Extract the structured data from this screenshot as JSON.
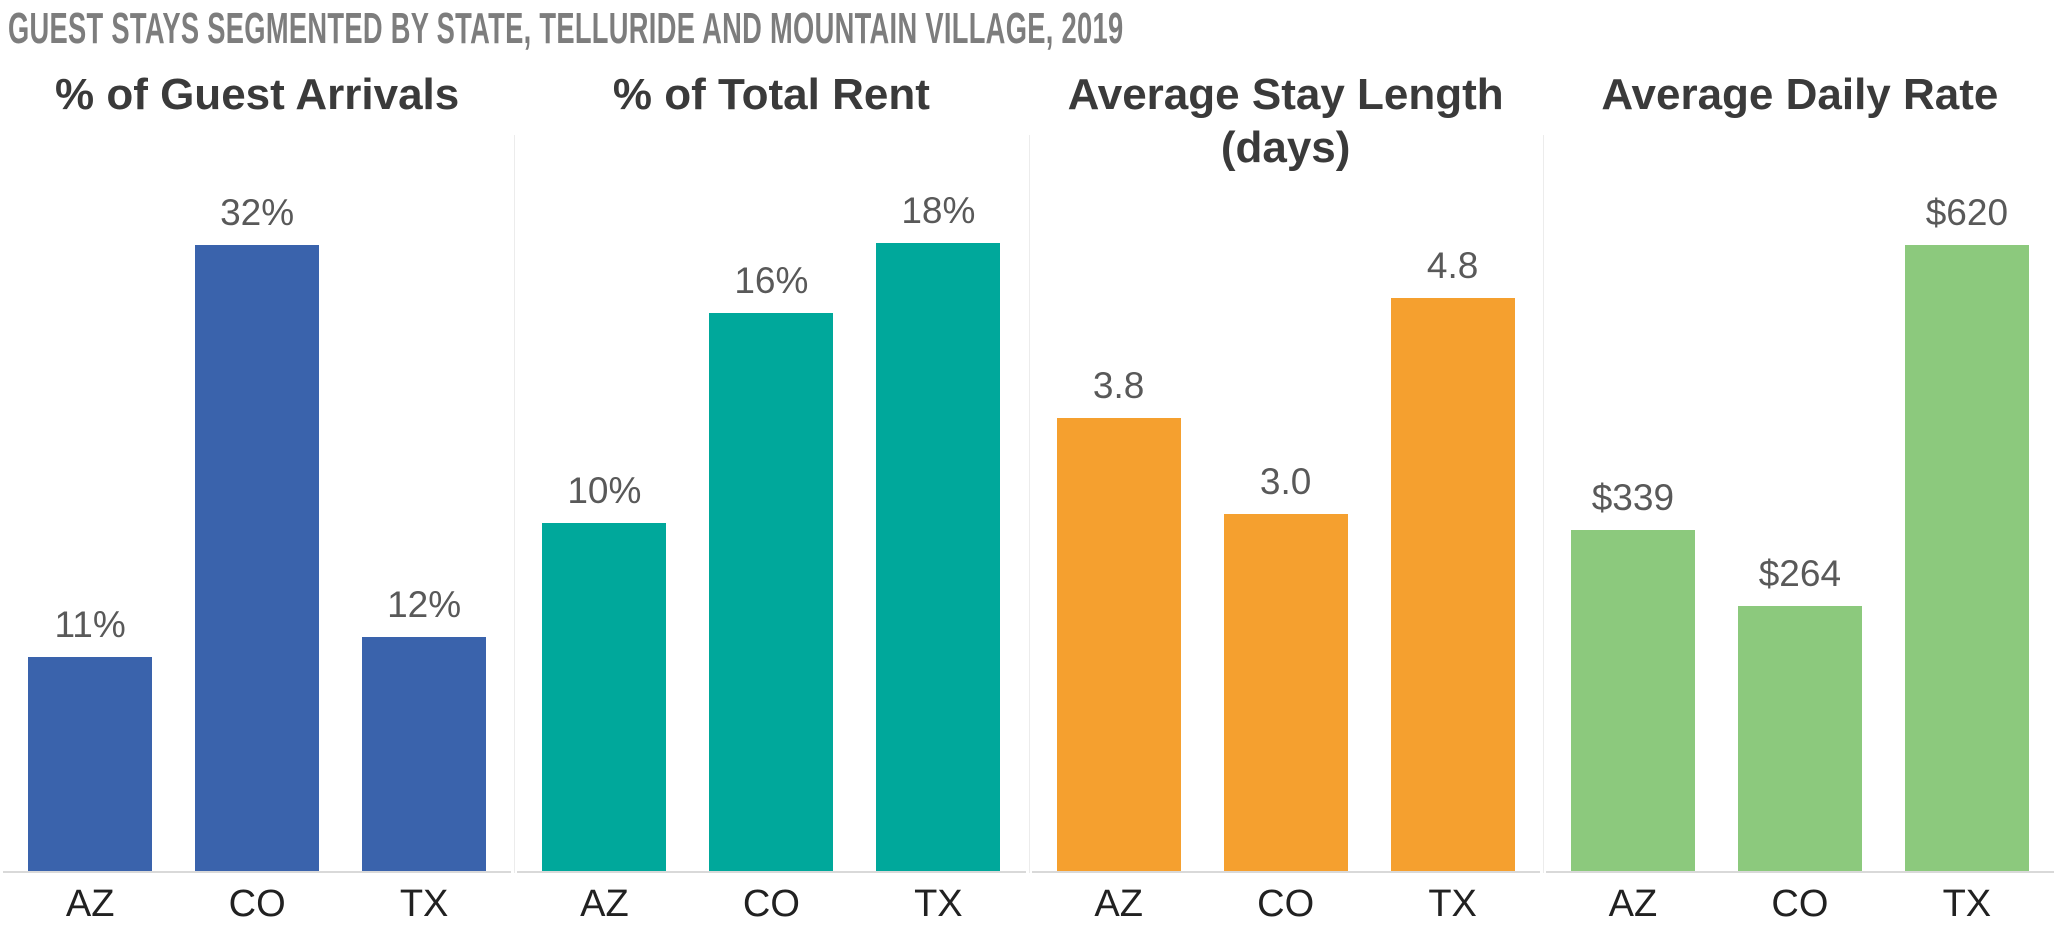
{
  "page": {
    "title": "GUEST STAYS SEGMENTED BY STATE, TELLURIDE AND MOUNTAIN VILLAGE, 2019"
  },
  "colors": {
    "headline_gray": "#7d7d7d",
    "chart_title": "#3a3a3a",
    "value_label": "#595959",
    "axis_label": "#212121",
    "axis_line": "#d9d9d9",
    "panel_divider": "#ececec",
    "blue": "#3a63ac",
    "teal": "#00a89b",
    "orange": "#f5a02f",
    "green": "#8cc97d"
  },
  "chart_data": [
    {
      "type": "bar",
      "title": "% of Guest Arrivals",
      "title_lines": [
        "% of Guest Arrivals"
      ],
      "categories": [
        "AZ",
        "CO",
        "TX"
      ],
      "values": [
        11,
        32,
        12
      ],
      "labels": [
        "11%",
        "32%",
        "12%"
      ],
      "color": "#3a63ac",
      "ylim": [
        0,
        32
      ],
      "grid": false,
      "legend": "none"
    },
    {
      "type": "bar",
      "title": "% of Total Rent",
      "title_lines": [
        "% of Total Rent"
      ],
      "categories": [
        "AZ",
        "CO",
        "TX"
      ],
      "values": [
        10,
        16,
        18
      ],
      "labels": [
        "10%",
        "16%",
        "18%"
      ],
      "color": "#00a89b",
      "ylim": [
        0,
        18
      ],
      "grid": false,
      "legend": "none"
    },
    {
      "type": "bar",
      "title": "Average Stay Length (days)",
      "title_lines": [
        "Average Stay Length",
        "(days)"
      ],
      "categories": [
        "AZ",
        "CO",
        "TX"
      ],
      "values": [
        3.8,
        3.0,
        4.8
      ],
      "labels": [
        "3.8",
        "3.0",
        "4.8"
      ],
      "color": "#f5a02f",
      "ylim": [
        0,
        4.8
      ],
      "grid": false,
      "legend": "none"
    },
    {
      "type": "bar",
      "title": "Average Daily Rate",
      "title_lines": [
        "Average Daily Rate"
      ],
      "categories": [
        "AZ",
        "CO",
        "TX"
      ],
      "values": [
        339,
        264,
        620
      ],
      "labels": [
        "$339",
        "$264",
        "$620"
      ],
      "color": "#8cc97d",
      "ylim": [
        0,
        620
      ],
      "grid": false,
      "legend": "none"
    }
  ]
}
